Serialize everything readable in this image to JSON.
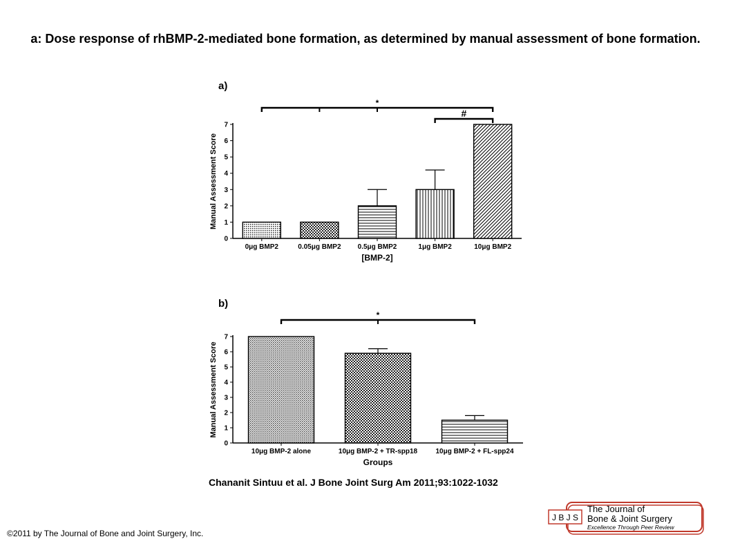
{
  "title": "a: Dose response of rhBMP-2-mediated bone formation, as determined by manual assessment of bone formation.",
  "citation": "Chananit Sintuu et al. J Bone Joint Surg Am 2011;93:1022-1032",
  "copyright": "©2011 by The Journal of Bone and Joint Surgery, Inc.",
  "logo": {
    "abbrev": "J B J S",
    "line1": "The Journal of",
    "line2": "Bone & Joint Surgery",
    "tagline": "Excellence Through Peer Review"
  },
  "colors": {
    "text": "#000000",
    "bar_fill": "#ffffff",
    "logo_red": "#c0392b"
  },
  "chart_data": [
    {
      "panel_label": "a)",
      "type": "bar",
      "categories": [
        "0μg BMP2",
        "0.05μg BMP2",
        "0.5μg BMP2",
        "1μg BMP2",
        "10μg BMP2"
      ],
      "values": [
        1,
        1,
        2,
        3,
        7
      ],
      "error": [
        0,
        0,
        1,
        1.2,
        0
      ],
      "patterns": [
        "dots",
        "checker",
        "horizontal",
        "vertical",
        "diagonal"
      ],
      "xlabel": "[BMP-2]",
      "ylabel": "Manual Assessment Score",
      "ylim": [
        0,
        7
      ],
      "yticks": [
        0,
        1,
        2,
        3,
        4,
        5,
        6,
        7
      ],
      "grid": false,
      "significance": [
        {
          "from": 0,
          "to": 4,
          "marks": [
            1,
            2
          ],
          "symbol": "*"
        },
        {
          "from": 3,
          "to": 4,
          "marks": [],
          "symbol": "#"
        }
      ]
    },
    {
      "panel_label": "b)",
      "type": "bar",
      "categories": [
        "10μg BMP-2 alone",
        "10μg BMP-2 + TR-spp18",
        "10μg BMP-2 + FL-spp24"
      ],
      "values": [
        7,
        5.9,
        1.5
      ],
      "error": [
        0,
        0.3,
        0.3
      ],
      "patterns": [
        "fine",
        "checker",
        "horizontal"
      ],
      "xlabel": "Groups",
      "ylabel": "Manual Assessment Score",
      "ylim": [
        0,
        7
      ],
      "yticks": [
        0,
        1,
        2,
        3,
        4,
        5,
        6,
        7
      ],
      "grid": false,
      "significance": [
        {
          "from": 0,
          "to": 2,
          "marks": [
            1
          ],
          "symbol": "*"
        }
      ]
    }
  ]
}
